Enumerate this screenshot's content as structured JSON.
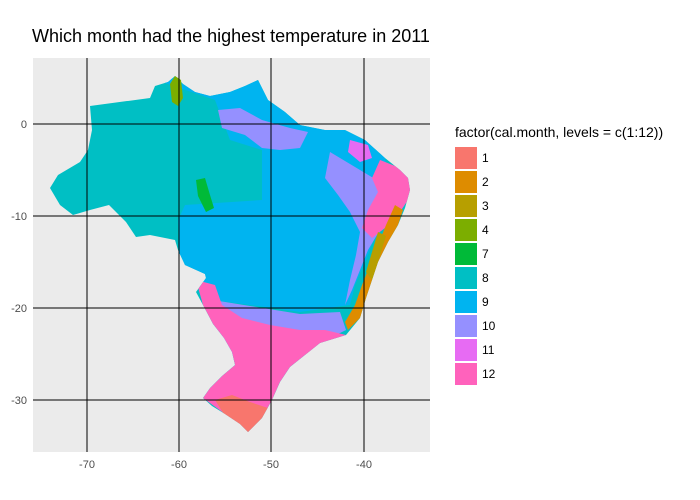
{
  "title": "Which month had the highest temperature in 2011",
  "legend": {
    "title": "factor(cal.month, levels = c(1:12))",
    "items": [
      {
        "label": "1",
        "color": "#F8766D"
      },
      {
        "label": "2",
        "color": "#DE8C00"
      },
      {
        "label": "3",
        "color": "#B79F00"
      },
      {
        "label": "4",
        "color": "#7CAE00"
      },
      {
        "label": "7",
        "color": "#00BA38"
      },
      {
        "label": "8",
        "color": "#00BFC4"
      },
      {
        "label": "9",
        "color": "#00B4F0"
      },
      {
        "label": "10",
        "color": "#9590FF"
      },
      {
        "label": "11",
        "color": "#E76BF3"
      },
      {
        "label": "12",
        "color": "#FF62BC"
      }
    ]
  },
  "axes": {
    "x_ticks": [
      "-70",
      "-60",
      "-50",
      "-40"
    ],
    "y_ticks": [
      "0",
      "-10",
      "-20",
      "-30"
    ],
    "panel_background": "#EBEBEB",
    "gridline_color": "#000000"
  },
  "chart_data": {
    "type": "heatmap",
    "title": "Which month had the highest temperature in 2011",
    "xlabel": "",
    "ylabel": "",
    "x_ticks": [
      -70,
      -60,
      -50,
      -40
    ],
    "y_ticks": [
      0,
      -10,
      -20,
      -30
    ],
    "xlim": [
      -76,
      -33
    ],
    "ylim": [
      -35.5,
      7.3
    ],
    "grid": true,
    "legend_position": "right",
    "categories": [
      "1",
      "2",
      "3",
      "4",
      "7",
      "8",
      "9",
      "10",
      "11",
      "12"
    ]
  }
}
